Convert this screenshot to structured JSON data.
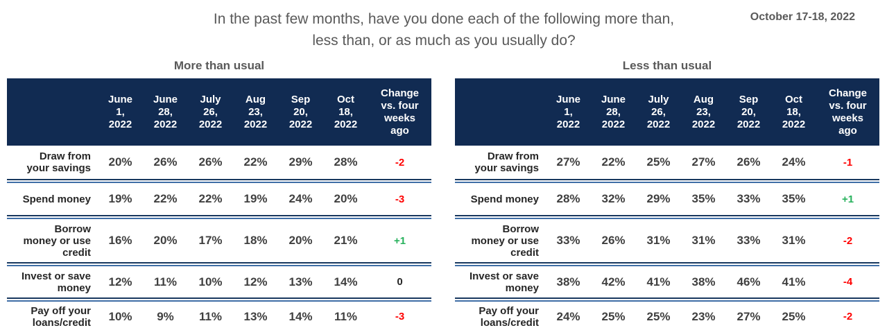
{
  "slide": {
    "title": "In the past few months, have you done each of the following more than,\nless than, or as much as you usually do?",
    "date": "October 17-18, 2022"
  },
  "columns_wrapped": [
    "June\n1,\n2022",
    "June\n28,\n2022",
    "July\n26,\n2022",
    "Aug\n23,\n2022",
    "Sep\n20,\n2022",
    "Oct\n18,\n2022",
    "Change\nvs. four\nweeks\nago"
  ],
  "chart_data": [
    {
      "type": "table",
      "title": "More than usual",
      "columns": [
        "June 1, 2022",
        "June 28, 2022",
        "July 26, 2022",
        "Aug 23, 2022",
        "Sep 20, 2022",
        "Oct 18, 2022",
        "Change vs. four weeks ago"
      ],
      "rows": [
        {
          "label": "Draw from your savings",
          "label_wrapped": "Draw from\nyour savings",
          "values": [
            "20%",
            "26%",
            "26%",
            "22%",
            "29%",
            "28%"
          ],
          "change": "-2",
          "change_color": "red"
        },
        {
          "label": "Spend money",
          "label_wrapped": "Spend money",
          "values": [
            "19%",
            "22%",
            "22%",
            "19%",
            "24%",
            "20%"
          ],
          "change": "-3",
          "change_color": "red"
        },
        {
          "label": "Borrow money or use credit",
          "label_wrapped": "Borrow\nmoney or use\ncredit",
          "values": [
            "16%",
            "20%",
            "17%",
            "18%",
            "20%",
            "21%"
          ],
          "change": "+1",
          "change_color": "green"
        },
        {
          "label": "Invest or save money",
          "label_wrapped": "Invest or save\nmoney",
          "values": [
            "12%",
            "11%",
            "10%",
            "12%",
            "13%",
            "14%"
          ],
          "change": "0",
          "change_color": "neutral"
        },
        {
          "label": "Pay off your loans/credit",
          "label_wrapped": "Pay off your\nloans/credit",
          "values": [
            "10%",
            "9%",
            "11%",
            "13%",
            "14%",
            "11%"
          ],
          "change": "-3",
          "change_color": "red"
        }
      ]
    },
    {
      "type": "table",
      "title": "Less than usual",
      "columns": [
        "June 1, 2022",
        "June 28, 2022",
        "July 26, 2022",
        "Aug 23, 2022",
        "Sep 20, 2022",
        "Oct 18, 2022",
        "Change vs. four weeks ago"
      ],
      "rows": [
        {
          "label": "Draw from your savings",
          "label_wrapped": "Draw from\nyour savings",
          "values": [
            "27%",
            "22%",
            "25%",
            "27%",
            "26%",
            "24%"
          ],
          "change": "-1",
          "change_color": "red"
        },
        {
          "label": "Spend money",
          "label_wrapped": "Spend money",
          "values": [
            "28%",
            "32%",
            "29%",
            "35%",
            "33%",
            "35%"
          ],
          "change": "+1",
          "change_color": "green"
        },
        {
          "label": "Borrow money or use credit",
          "label_wrapped": "Borrow\nmoney or use\ncredit",
          "values": [
            "33%",
            "26%",
            "31%",
            "31%",
            "33%",
            "31%"
          ],
          "change": "-2",
          "change_color": "red"
        },
        {
          "label": "Invest or save money",
          "label_wrapped": "Invest or save\nmoney",
          "values": [
            "38%",
            "42%",
            "41%",
            "38%",
            "46%",
            "41%"
          ],
          "change": "-4",
          "change_color": "red"
        },
        {
          "label": "Pay off your loans/credit",
          "label_wrapped": "Pay off your\nloans/credit",
          "values": [
            "24%",
            "25%",
            "25%",
            "23%",
            "27%",
            "25%"
          ],
          "change": "-2",
          "change_color": "red"
        }
      ]
    }
  ],
  "colors": {
    "header_bg": "#112B52",
    "separator_top": "#17375E",
    "separator_bottom": "#3F6EA6",
    "negative_change": "#FF0000",
    "positive_change": "#27B15C",
    "title_gray": "#595959",
    "value_text": "#404040"
  }
}
